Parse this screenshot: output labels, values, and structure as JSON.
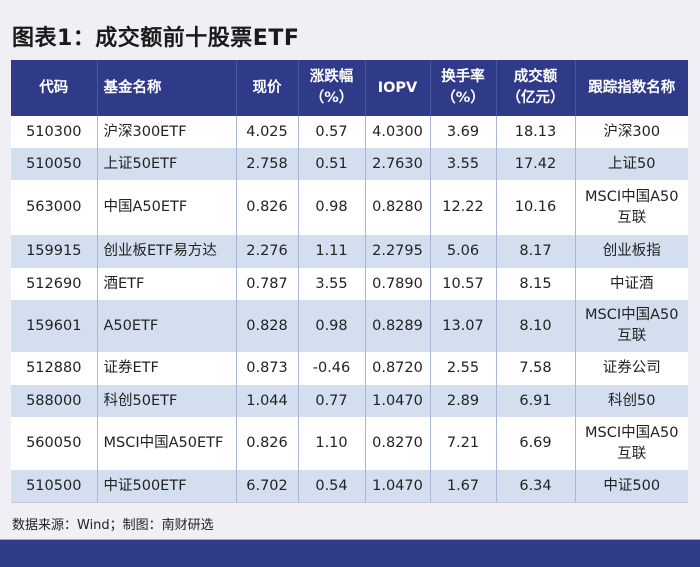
{
  "title": "图表1：成交额前十股票ETF",
  "table": {
    "headers": [
      {
        "line1": "代码",
        "line2": ""
      },
      {
        "line1": "基金名称",
        "line2": ""
      },
      {
        "line1": "现价",
        "line2": ""
      },
      {
        "line1": "涨跌幅",
        "line2": "（%）"
      },
      {
        "line1": "IOPV",
        "line2": ""
      },
      {
        "line1": "换手率",
        "line2": "（%）"
      },
      {
        "line1": "成交额",
        "line2": "（亿元）"
      },
      {
        "line1": "跟踪指数名称",
        "line2": ""
      }
    ],
    "rows": [
      {
        "code": "510300",
        "name": "沪深300ETF",
        "price": "4.025",
        "change": "0.57",
        "iopv": "4.0300",
        "turnover": "3.69",
        "volume": "18.13",
        "index1": "沪深300",
        "index2": ""
      },
      {
        "code": "510050",
        "name": "上证50ETF",
        "price": "2.758",
        "change": "0.51",
        "iopv": "2.7630",
        "turnover": "3.55",
        "volume": "17.42",
        "index1": "上证50",
        "index2": ""
      },
      {
        "code": "563000",
        "name": "中国A50ETF",
        "price": "0.826",
        "change": "0.98",
        "iopv": "0.8280",
        "turnover": "12.22",
        "volume": "10.16",
        "index1": "MSCI中国A50",
        "index2": "互联"
      },
      {
        "code": "159915",
        "name": "创业板ETF易方达",
        "price": "2.276",
        "change": "1.11",
        "iopv": "2.2795",
        "turnover": "5.06",
        "volume": "8.17",
        "index1": "创业板指",
        "index2": ""
      },
      {
        "code": "512690",
        "name": "酒ETF",
        "price": "0.787",
        "change": "3.55",
        "iopv": "0.7890",
        "turnover": "10.57",
        "volume": "8.15",
        "index1": "中证酒",
        "index2": ""
      },
      {
        "code": "159601",
        "name": "A50ETF",
        "price": "0.828",
        "change": "0.98",
        "iopv": "0.8289",
        "turnover": "13.07",
        "volume": "8.10",
        "index1": "MSCI中国A50",
        "index2": "互联"
      },
      {
        "code": "512880",
        "name": "证券ETF",
        "price": "0.873",
        "change": "-0.46",
        "iopv": "0.8720",
        "turnover": "2.55",
        "volume": "7.58",
        "index1": "证券公司",
        "index2": ""
      },
      {
        "code": "588000",
        "name": "科创50ETF",
        "price": "1.044",
        "change": "0.77",
        "iopv": "1.0470",
        "turnover": "2.89",
        "volume": "6.91",
        "index1": "科创50",
        "index2": ""
      },
      {
        "code": "560050",
        "name": "MSCI中国A50ETF",
        "price": "0.826",
        "change": "1.10",
        "iopv": "0.8270",
        "turnover": "7.21",
        "volume": "6.69",
        "index1": "MSCI中国A50",
        "index2": "互联"
      },
      {
        "code": "510500",
        "name": "中证500ETF",
        "price": "6.702",
        "change": "0.54",
        "iopv": "1.0470",
        "turnover": "1.67",
        "volume": "6.34",
        "index1": "中证500",
        "index2": ""
      }
    ]
  },
  "source": "数据来源：Wind；制图：南财研选",
  "colors": {
    "header_bg": "#2f3a89",
    "stripe": "#d3dfee",
    "page_bg": "#f0eff6"
  }
}
